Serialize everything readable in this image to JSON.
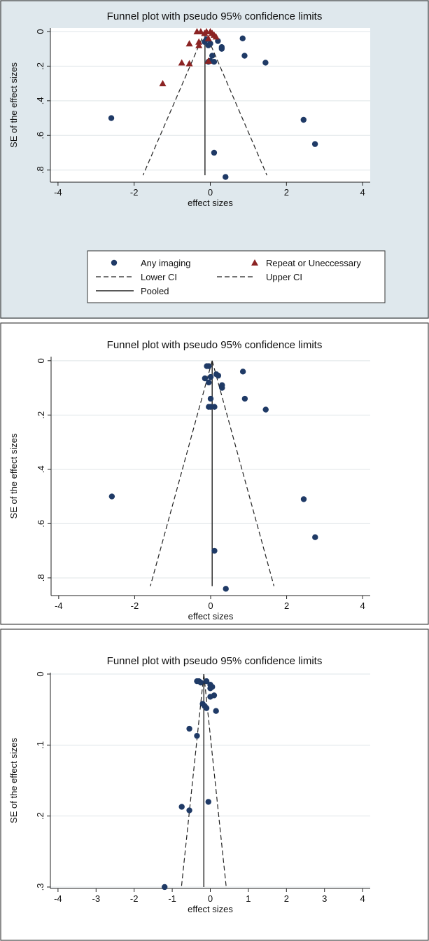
{
  "chart_data": [
    {
      "type": "scatter",
      "title": "Funnel plot with pseudo 95% confidence limits",
      "xlabel": "effect sizes",
      "ylabel": "SE of the effect sizes",
      "xlim": [
        -4.2,
        4.2
      ],
      "ylim": [
        0.87,
        -0.02
      ],
      "xticks": [
        -4,
        -2,
        0,
        2,
        4
      ],
      "yticks": [
        0,
        0.2,
        0.4,
        0.6,
        0.8
      ],
      "ytick_labels": [
        "0",
        ".2",
        ".4",
        ".6",
        ".8"
      ],
      "y_reversed": true,
      "pooled": -0.14,
      "ci_bottom_se": 0.83,
      "series": [
        {
          "name": "Any imaging",
          "marker": "circle",
          "color": "#1f3a66",
          "points": [
            [
              -2.6,
              0.5
            ],
            [
              -0.15,
              0.06
            ],
            [
              -0.1,
              0.045
            ],
            [
              -0.05,
              0.08
            ],
            [
              0.0,
              0.07
            ],
            [
              0.05,
              0.14
            ],
            [
              0.0,
              0.17
            ],
            [
              -0.05,
              0.175
            ],
            [
              0.1,
              0.175
            ],
            [
              0.2,
              0.055
            ],
            [
              0.3,
              0.09
            ],
            [
              0.3,
              0.1
            ],
            [
              0.85,
              0.04
            ],
            [
              0.9,
              0.14
            ],
            [
              1.45,
              0.18
            ],
            [
              2.45,
              0.51
            ],
            [
              2.75,
              0.65
            ],
            [
              0.1,
              0.7
            ],
            [
              0.4,
              0.84
            ]
          ]
        },
        {
          "name": "Repeat or Uneccessary",
          "marker": "triangle",
          "color": "#8b2323",
          "points": [
            [
              -0.35,
              0.0
            ],
            [
              -0.25,
              0.0
            ],
            [
              -0.1,
              0.0
            ],
            [
              -0.15,
              0.01
            ],
            [
              0.0,
              0.0
            ],
            [
              0.05,
              0.01
            ],
            [
              0.1,
              0.02
            ],
            [
              0.15,
              0.03
            ],
            [
              -0.05,
              0.04
            ],
            [
              -0.3,
              0.06
            ],
            [
              -0.55,
              0.07
            ],
            [
              -0.3,
              0.08
            ],
            [
              -0.75,
              0.18
            ],
            [
              -0.55,
              0.185
            ],
            [
              -0.05,
              0.17
            ],
            [
              -1.25,
              0.3
            ]
          ]
        }
      ],
      "legend": {
        "placement": "bottom",
        "entries": [
          "Any imaging",
          "Repeat or Uneccessary",
          "Lower CI",
          "Upper CI",
          "Pooled"
        ]
      }
    },
    {
      "type": "scatter",
      "title": "Funnel plot with pseudo 95% confidence limits",
      "xlabel": "effect sizes",
      "ylabel": "SE of the effect sizes",
      "xlim": [
        -4.2,
        4.2
      ],
      "ylim": [
        0.865,
        -0.015
      ],
      "xticks": [
        -4,
        -2,
        0,
        2,
        4
      ],
      "yticks": [
        0,
        0.2,
        0.4,
        0.6,
        0.8
      ],
      "ytick_labels": [
        "0",
        ".2",
        ".4",
        ".6",
        ".8"
      ],
      "y_reversed": true,
      "pooled": 0.04,
      "ci_bottom_se": 0.83,
      "series": [
        {
          "marker": "circle",
          "color": "#1f3a66",
          "points": [
            [
              -2.6,
              0.5
            ],
            [
              -0.1,
              0.02
            ],
            [
              -0.05,
              0.02
            ],
            [
              -0.15,
              0.065
            ],
            [
              0.0,
              0.06
            ],
            [
              -0.05,
              0.08
            ],
            [
              0.0,
              0.14
            ],
            [
              -0.05,
              0.17
            ],
            [
              0.0,
              0.17
            ],
            [
              0.1,
              0.17
            ],
            [
              0.15,
              0.05
            ],
            [
              0.2,
              0.055
            ],
            [
              0.3,
              0.09
            ],
            [
              0.3,
              0.1
            ],
            [
              0.85,
              0.04
            ],
            [
              0.9,
              0.14
            ],
            [
              1.45,
              0.18
            ],
            [
              2.45,
              0.51
            ],
            [
              2.75,
              0.65
            ],
            [
              0.1,
              0.7
            ],
            [
              0.4,
              0.84
            ]
          ]
        }
      ]
    },
    {
      "type": "scatter",
      "title": "Funnel plot with pseudo 95% confidence limits",
      "xlabel": "effect sizes",
      "ylabel": "SE of the effect sizes",
      "xlim": [
        -4.2,
        4.2
      ],
      "ylim": [
        0.302,
        -0.002
      ],
      "xticks": [
        -4,
        -3,
        -2,
        -1,
        0,
        1,
        2,
        3,
        4
      ],
      "yticks": [
        0,
        0.1,
        0.2,
        0.3
      ],
      "ytick_labels": [
        "0",
        ".1",
        ".2",
        ".3"
      ],
      "y_reversed": true,
      "pooled": -0.17,
      "ci_bottom_se": 0.3,
      "series": [
        {
          "marker": "circle",
          "color": "#1f3a66",
          "points": [
            [
              -0.35,
              0.01
            ],
            [
              -0.3,
              0.01
            ],
            [
              -0.25,
              0.012
            ],
            [
              -0.1,
              0.01
            ],
            [
              0.0,
              0.015
            ],
            [
              0.05,
              0.018
            ],
            [
              0.0,
              0.02
            ],
            [
              0.1,
              0.03
            ],
            [
              0.0,
              0.032
            ],
            [
              -0.2,
              0.042
            ],
            [
              -0.15,
              0.045
            ],
            [
              -0.1,
              0.048
            ],
            [
              0.15,
              0.052
            ],
            [
              -0.55,
              0.077
            ],
            [
              -0.35,
              0.087
            ],
            [
              -0.05,
              0.18
            ],
            [
              -0.75,
              0.187
            ],
            [
              -0.55,
              0.192
            ],
            [
              -1.2,
              0.3
            ]
          ]
        }
      ]
    }
  ]
}
